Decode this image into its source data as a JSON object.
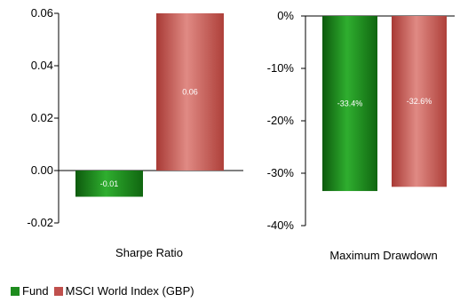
{
  "chart_data": [
    {
      "type": "bar",
      "title": "Sharpe Ratio",
      "categories": [
        "Sharpe Ratio"
      ],
      "series": [
        {
          "name": "Fund",
          "values": [
            -0.01
          ],
          "label": "-0.01"
        },
        {
          "name": "MSCI World Index (GBP)",
          "values": [
            0.06
          ],
          "label": "0.06"
        }
      ],
      "ylim": [
        -0.02,
        0.06
      ],
      "yticks": [
        {
          "value": 0.06,
          "label": "0.06"
        },
        {
          "value": 0.04,
          "label": "0.04"
        },
        {
          "value": 0.02,
          "label": "0.02"
        },
        {
          "value": 0.0,
          "label": "0.00"
        },
        {
          "value": -0.02,
          "label": "-0.02"
        }
      ],
      "grid": false
    },
    {
      "type": "bar",
      "title": "Maximum Drawdown",
      "categories": [
        "Maximum Drawdown"
      ],
      "series": [
        {
          "name": "Fund",
          "values": [
            -33.4
          ],
          "label": "-33.4%"
        },
        {
          "name": "MSCI World Index (GBP)",
          "values": [
            -32.6
          ],
          "label": "-32.6%"
        }
      ],
      "ylim": [
        -40,
        0
      ],
      "yticks": [
        {
          "value": 0,
          "label": "0%"
        },
        {
          "value": -10,
          "label": "-10%"
        },
        {
          "value": -20,
          "label": "-20%"
        },
        {
          "value": -30,
          "label": "-30%"
        },
        {
          "value": -40,
          "label": "-40%"
        }
      ],
      "grid": false
    }
  ],
  "legend": {
    "placement": "bottom-left",
    "items": [
      {
        "label": "Fund",
        "color": "#1e8c1e"
      },
      {
        "label": "MSCI World Index (GBP)",
        "color": "#c0504d"
      }
    ]
  }
}
